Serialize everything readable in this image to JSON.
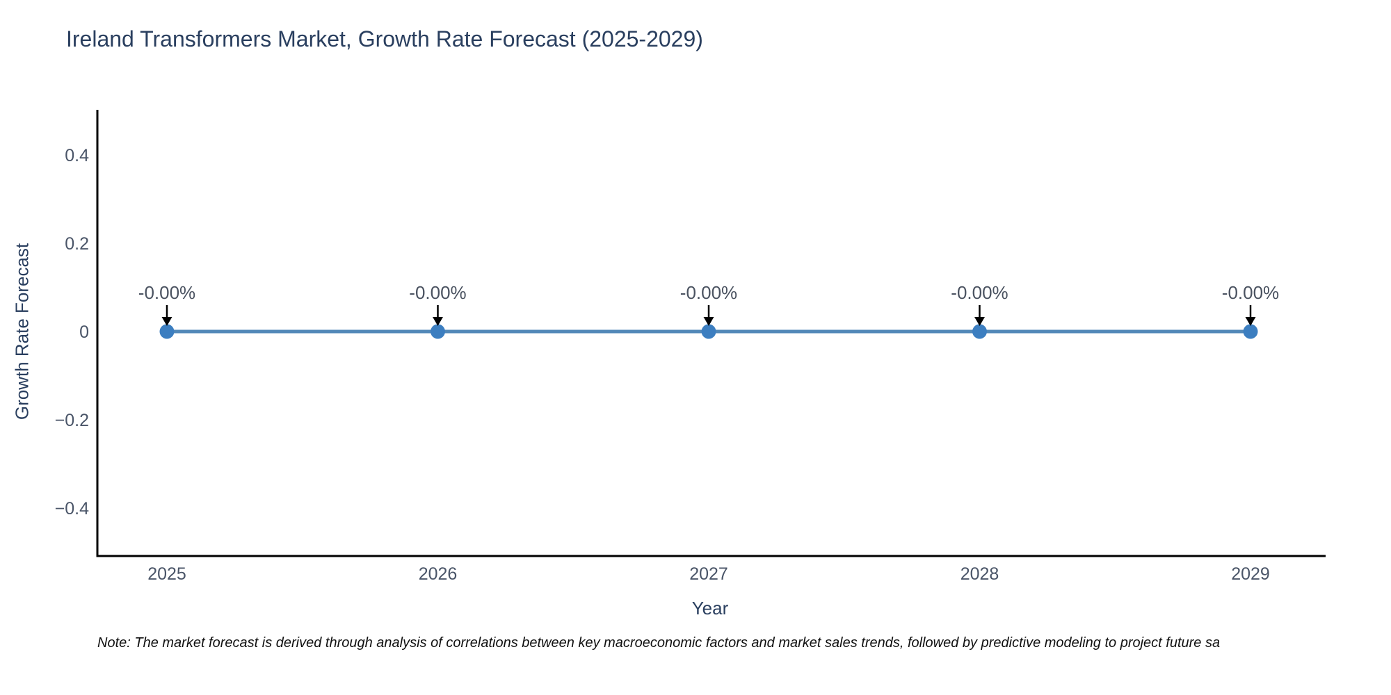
{
  "title": "Ireland Transformers Market, Growth Rate Forecast (2025-2029)",
  "note": "Note: The market forecast is derived through analysis of correlations between key macroeconomic factors and market sales trends, followed by predictive modeling to project future sa",
  "chart_data": {
    "type": "line",
    "title": "Ireland Transformers Market, Growth Rate Forecast (2025-2029)",
    "xlabel": "Year",
    "ylabel": "Growth Rate Forecast",
    "x": [
      2025,
      2026,
      2027,
      2028,
      2029
    ],
    "values": [
      0,
      0,
      0,
      0,
      0
    ],
    "point_labels": [
      "-0.00%",
      "-0.00%",
      "-0.00%",
      "-0.00%",
      "-0.00%"
    ],
    "xtick_labels": [
      "2025",
      "2026",
      "2027",
      "2028",
      "2029"
    ],
    "yticks": [
      0.4,
      0.2,
      0,
      -0.2,
      -0.4
    ],
    "ytick_labels": [
      "0.4",
      "0.2",
      "0",
      "−0.2",
      "−0.4"
    ],
    "ylim": [
      -0.5,
      0.5
    ],
    "grid": false,
    "legend": "none",
    "marker": "circle",
    "annotation_arrow": "down-arrow"
  },
  "colors": {
    "title": "#2a3f5f",
    "tick": "#4a5568",
    "annotation": "#4a5260",
    "note": "#111111",
    "axis": "#000000",
    "line": "#5288b8",
    "marker": "#3c7ec0",
    "arrow": "#000000"
  }
}
